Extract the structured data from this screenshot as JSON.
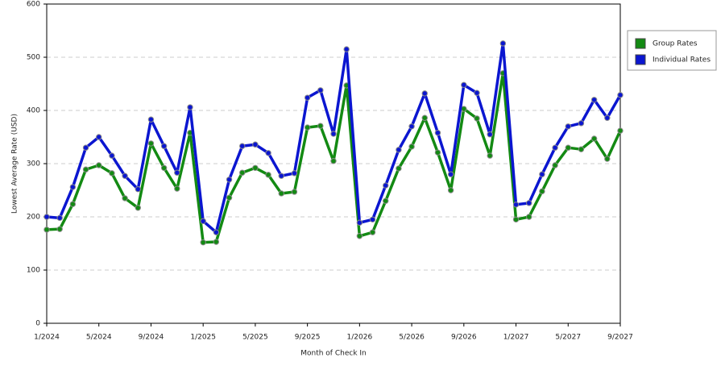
{
  "chart_data": {
    "type": "line",
    "x_label": "Month of Check In",
    "y_label": "Lowest Average Rate (USD)",
    "categories": [
      "1/2024",
      null,
      null,
      null,
      "5/2024",
      null,
      null,
      null,
      "9/2024",
      null,
      null,
      null,
      "1/2025",
      null,
      null,
      null,
      "5/2025",
      null,
      null,
      null,
      "9/2025",
      null,
      null,
      null,
      "1/2026",
      null,
      null,
      null,
      "5/2026",
      null,
      null,
      null,
      "9/2026",
      null,
      null,
      null,
      "1/2027",
      null,
      null,
      null,
      "5/2027",
      null,
      null,
      null,
      "9/2027"
    ],
    "series": [
      {
        "name": "Group Rates",
        "color": "#138a13",
        "values": [
          176,
          177,
          224,
          289,
          297,
          282,
          235,
          217,
          338,
          292,
          253,
          358,
          152,
          153,
          236,
          283,
          292,
          279,
          244,
          247,
          368,
          371,
          305,
          447,
          164,
          171,
          230,
          291,
          332,
          386,
          321,
          250,
          403,
          385,
          315,
          470,
          195,
          200,
          248,
          297,
          330,
          327,
          347,
          309,
          362
        ]
      },
      {
        "name": "Individual Rates",
        "color": "#0b16d0",
        "values": [
          200,
          198,
          256,
          330,
          350,
          315,
          277,
          252,
          383,
          333,
          283,
          406,
          192,
          171,
          270,
          333,
          336,
          320,
          277,
          282,
          424,
          438,
          356,
          515,
          189,
          195,
          259,
          326,
          370,
          432,
          358,
          280,
          448,
          433,
          355,
          526,
          223,
          226,
          280,
          330,
          370,
          376,
          420,
          386,
          429
        ]
      }
    ],
    "ylim": [
      0,
      600
    ],
    "yticks": [
      0,
      100,
      200,
      300,
      400,
      500,
      600
    ],
    "grid": true,
    "legend": "right"
  }
}
